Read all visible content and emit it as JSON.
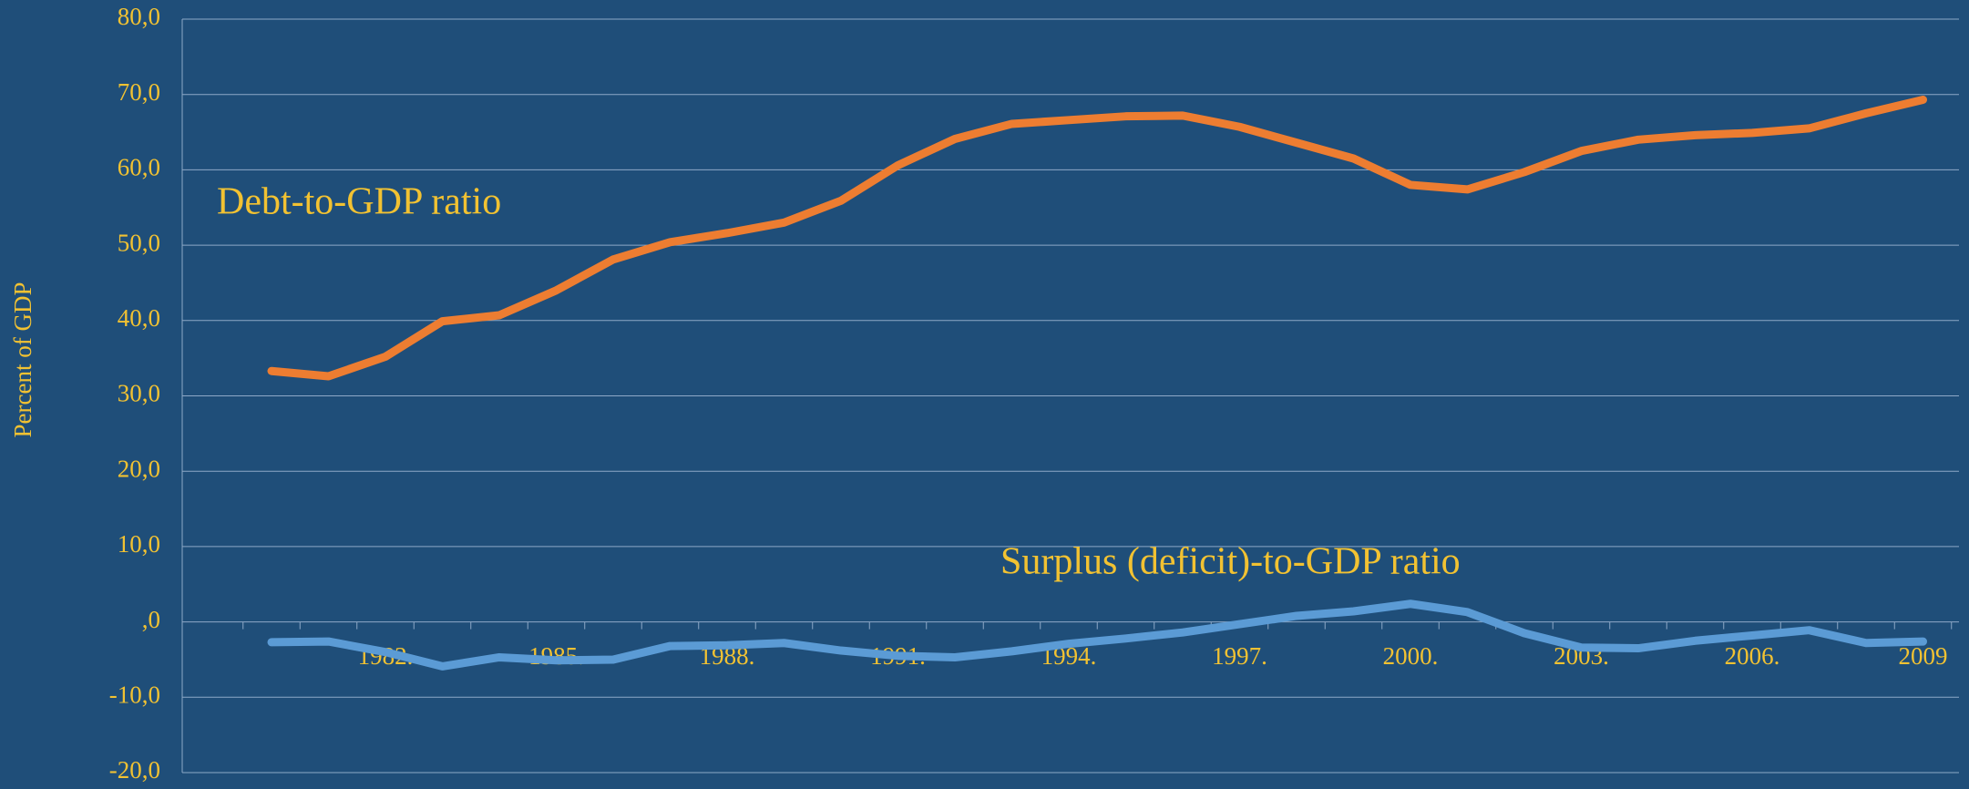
{
  "chart_data": {
    "type": "line",
    "y_label": "Percent of GDP",
    "categories": [
      null,
      null,
      "1982.",
      null,
      null,
      "1985.",
      null,
      null,
      "1988.",
      null,
      null,
      "1991.",
      null,
      null,
      "1994.",
      null,
      null,
      "1997.",
      null,
      null,
      "2000.",
      null,
      null,
      "2003.",
      null,
      null,
      "2006.",
      null,
      null,
      "2009"
    ],
    "series": [
      {
        "name": "Debt-to-GDP ratio",
        "color": "#ed7d31",
        "values": [
          33.3,
          32.6,
          35.2,
          39.9,
          40.7,
          44.0,
          48.1,
          50.4,
          51.6,
          53.0,
          55.9,
          60.6,
          64.1,
          66.1,
          66.6,
          67.1,
          67.2,
          65.7,
          63.6,
          61.5,
          58.0,
          57.4,
          59.7,
          62.5,
          64.0,
          64.6,
          64.9,
          65.5,
          67.5,
          69.3
        ]
      },
      {
        "name": "Surplus (deficit)-to-GDP ratio",
        "color": "#5b9bd5",
        "values": [
          -2.7,
          -2.6,
          -4.0,
          -5.9,
          -4.7,
          -5.1,
          -5.0,
          -3.2,
          -3.1,
          -2.8,
          -3.8,
          -4.5,
          -4.7,
          -3.9,
          -2.9,
          -2.2,
          -1.4,
          -0.3,
          0.8,
          1.4,
          2.4,
          1.3,
          -1.5,
          -3.4,
          -3.5,
          -2.5,
          -1.8,
          -1.1,
          -2.8,
          -2.6
        ]
      }
    ],
    "ylim": [
      -20,
      80
    ],
    "yticks": [
      {
        "value": -20,
        "label": "-20,0"
      },
      {
        "value": -10,
        "label": "-10,0"
      },
      {
        "value": 0,
        "label": ",0"
      },
      {
        "value": 10,
        "label": "10,0"
      },
      {
        "value": 20,
        "label": "20,0"
      },
      {
        "value": 30,
        "label": "30,0"
      },
      {
        "value": 40,
        "label": "40,0"
      },
      {
        "value": 50,
        "label": "50,0"
      },
      {
        "value": 60,
        "label": "60,0"
      },
      {
        "value": 70,
        "label": "70,0"
      },
      {
        "value": 80,
        "label": "80,0"
      }
    ],
    "grid": true
  }
}
